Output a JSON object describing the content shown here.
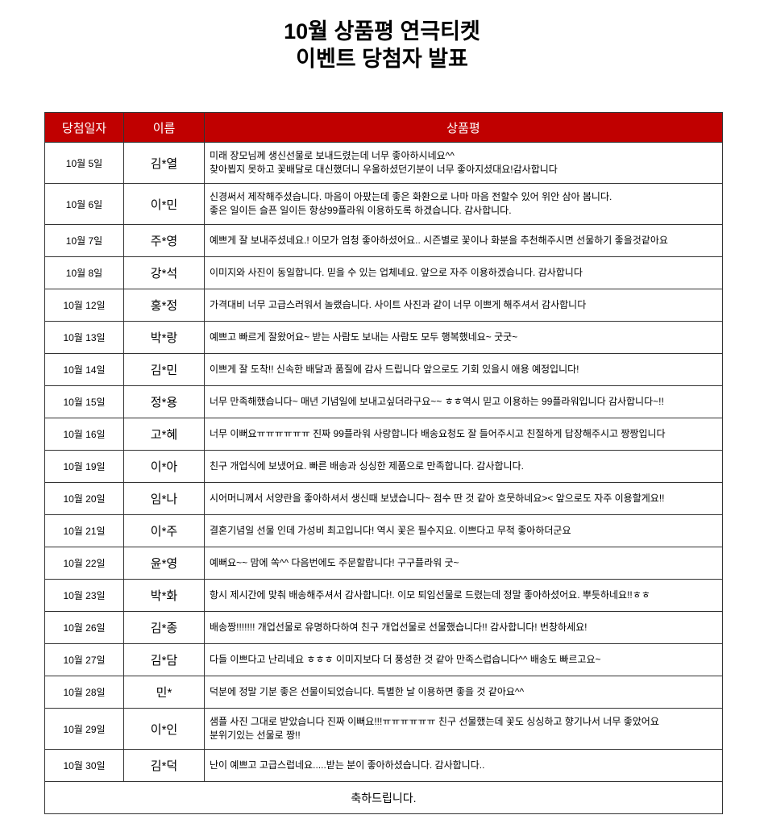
{
  "header": {
    "title_lines": [
      "10월 상품평 연극티켓",
      "이벤트 당첨자  발표"
    ]
  },
  "table": {
    "columns": [
      "당첨일자",
      "이름",
      "상품평"
    ],
    "rows": [
      [
        "10월 5일",
        "김*열",
        "미래 장모님께 생신선물로 보내드렸는데 너무 좋아하시네요^^\n찾아뵙지 못하고 꽃배달로 대신했더니 우울하셨던기분이 너무 좋아지셨대요!감사합니다"
      ],
      [
        "10월 6일",
        "이*민",
        "신경써서 제작해주셨습니다.  마음이 아팠는데 좋은 화환으로 나마 마음 전할수 있어 위안 삼아 봅니다.\n좋은 일이든 슬픈 일이든 항상99플라워 이용하도록 하겠습니다. 감사합니다."
      ],
      [
        "10월 7일",
        "주*영",
        "예쁘게 잘 보내주셨네요.! 이모가 엄청 좋아하셨어요.. 시즌별로 꽃이나 화분을 추천해주시면 선물하기 좋을것같아요"
      ],
      [
        "10월 8일",
        "강*석",
        "이미지와 사진이 동일합니다. 믿을 수 있는 업체네요. 앞으로 자주 이용하겠습니다. 감사합니다"
      ],
      [
        "10월 12일",
        "홍*정",
        "가격대비 너무 고급스러워서 놀랬습니다.   사이트 사진과 같이 너무 이쁘게 해주셔서 감사합니다"
      ],
      [
        "10월 13일",
        "박*랑",
        "예쁘고 빠르게 잘왔어요~ 받는 사람도 보내는 사람도 모두 행복했네요~ 굿굿~"
      ],
      [
        "10월 14일",
        "김*민",
        "이쁘게 잘 도착!! 신속한 배달과 품질에 감사 드립니다 앞으로도 기회 있을시 애용 예정입니다!"
      ],
      [
        "10월 15일",
        "정*용",
        "너무 만족해했습니다~ 매년 기념일에 보내고싶더라구요~~ ㅎㅎ역시 믿고 이용하는 99플라워입니다 감사합니다~!!"
      ],
      [
        "10월 16일",
        "고*혜",
        "너무 이뻐요ㅠㅠㅠㅠㅠㅠ 진짜 99플라워 사랑합니다 배송요청도 잘 들어주시고 친절하게 답장해주시고 짱짱입니다"
      ],
      [
        "10월 19일",
        "이*아",
        "친구 개업식에 보냈어요.  빠른 배송과 싱싱한 제품으로 만족합니다. 감사합니다."
      ],
      [
        "10월 20일",
        "임*나",
        "시어머니께서 서양란을 좋아하셔서 생신때 보냈습니다~ 점수 딴 것 같아 흐뭇하네요>< 앞으로도 자주 이용할게요!!"
      ],
      [
        "10월 21일",
        "이*주",
        "결혼기념일 선물 인데 가성비 최고입니다! 역시 꽃은 필수지요. 이쁘다고 무척 좋아하더군요"
      ],
      [
        "10월 22일",
        "윤*영",
        "예뻐요~~ 맘에 쏙^^ 다음번에도 주문할랍니다! 구구플라워 굿~"
      ],
      [
        "10월 23일",
        "박*화",
        "항시 제시간에 맞춰 배송해주셔서 감사합니다!. 이모 퇴임선물로 드렸는데 정말 좋아하셨어요. 뿌듯하네요!!ㅎㅎ"
      ],
      [
        "10월 26일",
        "김*종",
        "배송짱!!!!!!! 개업선물로 유명하다하여 친구 개업선물로 선물했습니다!! 감사합니다! 번창하세요!"
      ],
      [
        "10월 27일",
        "김*담",
        "다들 이쁘다고 난리네요 ㅎㅎㅎ 이미지보다 더 풍성한 것 같아 만족스럽습니다^^ 배송도 빠르고요~"
      ],
      [
        "10월 28일",
        "민*",
        "덕분에 정말 기분 좋은 선물이되었습니다. 특별한 날 이용하면 좋을 것 같아요^^"
      ],
      [
        "10월 29일",
        "이*인",
        "샘플 사진 그대로 받았습니다 진짜 이뻐요!!!ㅠㅠㅠㅠㅠㅠ 친구 선물했는데 꽃도 싱싱하고 향기나서 너무 좋았어요\n분위기있는 선물로 짱!!"
      ],
      [
        "10월 30일",
        "김*덕",
        "난이 예쁘고 고급스럽네요.....받는 분이 좋아하셨습니다. 감사합니다.."
      ]
    ],
    "footer": "축하드립니다."
  }
}
